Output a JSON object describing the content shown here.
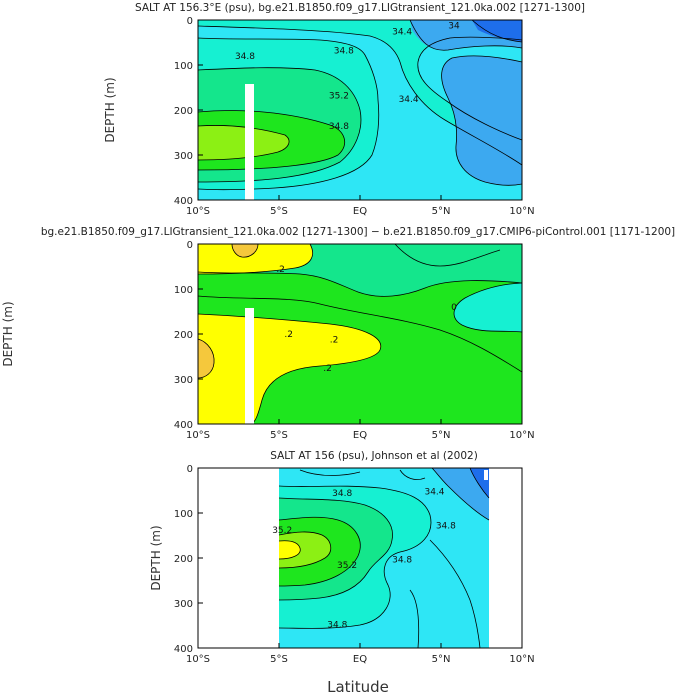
{
  "colors": {
    "deep_blue": "#1E6EEB",
    "mid_blue": "#3CA9F0",
    "cyan": "#2EE6F5",
    "aqua": "#16F0D2",
    "seagreen": "#14E68C",
    "green": "#1EE61E",
    "lime": "#8CF014",
    "yellow": "#FFFF00",
    "orange": "#F5C83C",
    "mask": "#FFFFFF",
    "contour": "#000000"
  },
  "chart_data": [
    {
      "type": "heatmap",
      "title": "SALT AT 156.3°E (psu), bg.e21.B1850.f09_g17.LIGtransient_121.0ka.002 [1271-1300]",
      "xlabel": "",
      "ylabel": "DEPTH (m)",
      "xlim": [
        -10,
        10
      ],
      "ylim": [
        400,
        0
      ],
      "x_ticks": [
        -10,
        -5,
        0,
        5,
        10
      ],
      "x_tick_labels": [
        "10°S",
        "5°S",
        "EQ",
        "5°N",
        "10°N"
      ],
      "y_ticks": [
        0,
        100,
        200,
        300,
        400
      ],
      "y_tick_labels": [
        "0",
        "100",
        "200",
        "300",
        "400"
      ],
      "contour_labels": [
        {
          "text": "34.8",
          "x": -7.1,
          "y": 80
        },
        {
          "text": "34.8",
          "x": -1.0,
          "y": 68
        },
        {
          "text": "34.4",
          "x": 2.6,
          "y": 25
        },
        {
          "text": "34",
          "x": 5.8,
          "y": 12
        },
        {
          "text": "35.2",
          "x": -1.3,
          "y": 168
        },
        {
          "text": "34.8",
          "x": -1.3,
          "y": 236
        },
        {
          "text": "34.4",
          "x": 3.0,
          "y": 175
        }
      ]
    },
    {
      "type": "heatmap",
      "title": "bg.e21.B1850.f09_g17.LIGtransient_121.0ka.002 [1271-1300] − b.e21.B1850.f09_g17.CMIP6-piControl.001 [1171-1200]",
      "xlabel": "",
      "ylabel": "DEPTH (m)",
      "xlim": [
        -10,
        10
      ],
      "ylim": [
        400,
        0
      ],
      "x_ticks": [
        -10,
        -5,
        0,
        5,
        10
      ],
      "x_tick_labels": [
        "10°S",
        "5°S",
        "EQ",
        "5°N",
        "10°N"
      ],
      "y_ticks": [
        0,
        100,
        200,
        300,
        400
      ],
      "y_tick_labels": [
        "0",
        "100",
        "200",
        "300",
        "400"
      ],
      "contour_labels": [
        {
          "text": ".2",
          "x": -4.9,
          "y": 55
        },
        {
          "text": "0",
          "x": 5.8,
          "y": 140
        },
        {
          "text": ".2",
          "x": -4.4,
          "y": 200
        },
        {
          "text": ".2",
          "x": -1.6,
          "y": 212
        },
        {
          "text": ".2",
          "x": -2.0,
          "y": 275
        }
      ]
    },
    {
      "type": "heatmap",
      "title": "SALT AT 156 (psu), Johnson et al (2002)",
      "xlabel": "Latitude",
      "ylabel": "DEPTH (m)",
      "xlim": [
        -10,
        10
      ],
      "ylim": [
        400,
        0
      ],
      "x_ticks": [
        -10,
        -5,
        0,
        5,
        10
      ],
      "x_tick_labels": [
        "10°S",
        "5°S",
        "EQ",
        "5°N",
        "10°N"
      ],
      "y_ticks": [
        0,
        100,
        200,
        300,
        400
      ],
      "y_tick_labels": [
        "0",
        "100",
        "200",
        "300",
        "400"
      ],
      "contour_labels": [
        {
          "text": "34.8",
          "x": -1.1,
          "y": 55
        },
        {
          "text": "34.4",
          "x": 4.6,
          "y": 52
        },
        {
          "text": "34.8",
          "x": 5.3,
          "y": 128
        },
        {
          "text": "35.2",
          "x": -4.8,
          "y": 138
        },
        {
          "text": "35.2",
          "x": -0.8,
          "y": 215
        },
        {
          "text": "34.8",
          "x": 2.6,
          "y": 203
        },
        {
          "text": "34.8",
          "x": -1.4,
          "y": 348
        }
      ]
    }
  ]
}
